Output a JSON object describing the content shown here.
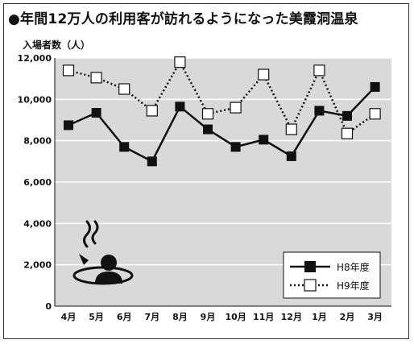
{
  "title": "●年間12万人の利用客が訪れるようになった美霞洞温泉",
  "chart_data": {
    "type": "line",
    "ylabel": "入場者数（人）",
    "categories": [
      "4月",
      "5月",
      "6月",
      "7月",
      "8月",
      "9月",
      "10月",
      "11月",
      "12月",
      "1月",
      "2月",
      "3月"
    ],
    "ylim": [
      0,
      12000
    ],
    "yticks": [
      0,
      2000,
      4000,
      6000,
      8000,
      10000,
      12000
    ],
    "ytick_labels": [
      "0",
      "2,000",
      "4,000",
      "6,000",
      "8,000",
      "10,000",
      "12,000"
    ],
    "grid": true,
    "legend_position": "bottom-right",
    "series": [
      {
        "name": "H8年度",
        "style": "solid",
        "marker": "filled-square",
        "values": [
          8750,
          9350,
          7700,
          7000,
          9650,
          8550,
          7700,
          8050,
          7250,
          9450,
          9200,
          10600
        ]
      },
      {
        "name": "H9年度",
        "style": "dotted",
        "marker": "open-square",
        "values": [
          11400,
          11050,
          10500,
          9450,
          11800,
          9300,
          9600,
          11200,
          8550,
          11400,
          8350,
          9300
        ]
      }
    ],
    "icon": "hot-spring-icon",
    "colors": {
      "plot_bg": "#d9d9d9",
      "line": "#111111",
      "grid": "#ffffff"
    }
  }
}
